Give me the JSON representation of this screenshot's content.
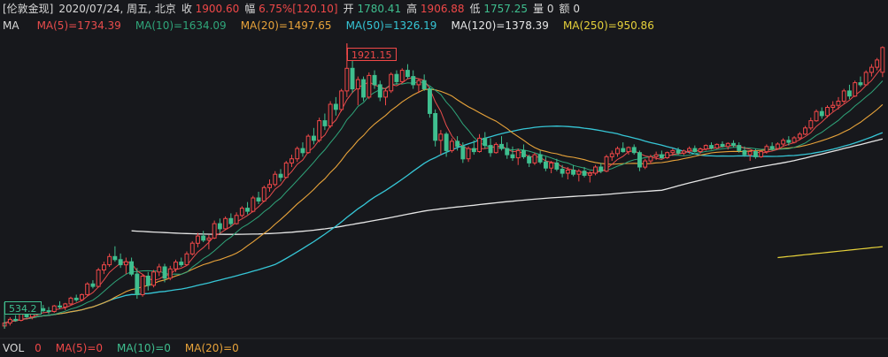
{
  "quote": {
    "symbol": "[伦敦金现]",
    "datetime": "2020/07/24, 周五, 北京",
    "close_label": "收",
    "close_value": "1900.60",
    "change_label": "幅",
    "change_value": "6.75%[120.10]",
    "open_label": "开",
    "open_value": "1780.41",
    "high_label": "高",
    "high_value": "1906.88",
    "low_label": "低",
    "low_value": "1757.25",
    "volume_label": "量",
    "volume_value": "0",
    "amount_label": "额",
    "amount_value": "0"
  },
  "ma_legend": {
    "label": "MA",
    "items": [
      {
        "text": "MA(5)=1734.39",
        "color": "#e84c4c"
      },
      {
        "text": "MA(10)=1634.09",
        "color": "#2fa57a"
      },
      {
        "text": "MA(20)=1497.65",
        "color": "#e8a33a"
      },
      {
        "text": "MA(50)=1326.19",
        "color": "#36c6d6"
      },
      {
        "text": "MA(120)=1378.39",
        "color": "#e6e6e6"
      },
      {
        "text": "MA(250)=950.86",
        "color": "#e6d13a"
      }
    ]
  },
  "vol_legend": {
    "label": "VOL",
    "items": [
      {
        "text": "0",
        "color": "#f04848"
      },
      {
        "text": "MA(5)=0",
        "color": "#f04848"
      },
      {
        "text": "MA(10)=0",
        "color": "#3fbf8f"
      },
      {
        "text": "MA(20)=0",
        "color": "#e8a33a"
      }
    ]
  },
  "chart_data": {
    "type": "candlestick",
    "title": "",
    "xlabel": "",
    "ylabel": "",
    "ylim": [
      500,
      1960
    ],
    "annotations": [
      {
        "text": "1921.15",
        "kind": "high"
      },
      {
        "text": "534.2",
        "kind": "low"
      }
    ],
    "colors": {
      "up": "#f04848",
      "down": "#3fbf8f"
    },
    "candles": [
      [
        548,
        570,
        534.2,
        562
      ],
      [
        562,
        590,
        550,
        580
      ],
      [
        580,
        600,
        568,
        575
      ],
      [
        575,
        612,
        570,
        605
      ],
      [
        605,
        618,
        585,
        592
      ],
      [
        592,
        615,
        580,
        610
      ],
      [
        610,
        640,
        600,
        632
      ],
      [
        632,
        650,
        615,
        622
      ],
      [
        622,
        640,
        605,
        618
      ],
      [
        618,
        650,
        612,
        645
      ],
      [
        645,
        668,
        630,
        640
      ],
      [
        640,
        660,
        625,
        655
      ],
      [
        655,
        690,
        650,
        683
      ],
      [
        683,
        700,
        665,
        675
      ],
      [
        675,
        705,
        668,
        700
      ],
      [
        700,
        760,
        695,
        752
      ],
      [
        752,
        770,
        730,
        740
      ],
      [
        740,
        830,
        735,
        820
      ],
      [
        820,
        860,
        800,
        845
      ],
      [
        845,
        900,
        835,
        885
      ],
      [
        885,
        935,
        860,
        870
      ],
      [
        870,
        900,
        830,
        845
      ],
      [
        845,
        880,
        800,
        860
      ],
      [
        860,
        880,
        790,
        800
      ],
      [
        800,
        830,
        680,
        700
      ],
      [
        700,
        800,
        690,
        790
      ],
      [
        790,
        810,
        720,
        745
      ],
      [
        745,
        820,
        735,
        810
      ],
      [
        810,
        850,
        790,
        835
      ],
      [
        835,
        850,
        760,
        780
      ],
      [
        780,
        840,
        770,
        825
      ],
      [
        825,
        870,
        810,
        858
      ],
      [
        858,
        880,
        835,
        845
      ],
      [
        845,
        910,
        840,
        898
      ],
      [
        898,
        960,
        890,
        950
      ],
      [
        950,
        1000,
        930,
        985
      ],
      [
        985,
        1010,
        955,
        965
      ],
      [
        965,
        990,
        920,
        975
      ],
      [
        975,
        1060,
        970,
        1045
      ],
      [
        1045,
        1070,
        1000,
        1020
      ],
      [
        1020,
        1080,
        1015,
        1070
      ],
      [
        1070,
        1095,
        1030,
        1045
      ],
      [
        1045,
        1100,
        1040,
        1085
      ],
      [
        1085,
        1130,
        1075,
        1120
      ],
      [
        1120,
        1150,
        1090,
        1105
      ],
      [
        1105,
        1180,
        1100,
        1170
      ],
      [
        1170,
        1200,
        1140,
        1155
      ],
      [
        1155,
        1230,
        1150,
        1220
      ],
      [
        1220,
        1260,
        1200,
        1235
      ],
      [
        1235,
        1300,
        1225,
        1285
      ],
      [
        1285,
        1310,
        1250,
        1270
      ],
      [
        1270,
        1350,
        1265,
        1340
      ],
      [
        1340,
        1380,
        1320,
        1360
      ],
      [
        1360,
        1420,
        1345,
        1410
      ],
      [
        1410,
        1440,
        1370,
        1390
      ],
      [
        1390,
        1480,
        1385,
        1470
      ],
      [
        1470,
        1510,
        1430,
        1450
      ],
      [
        1450,
        1560,
        1440,
        1545
      ],
      [
        1545,
        1580,
        1500,
        1520
      ],
      [
        1520,
        1640,
        1510,
        1625
      ],
      [
        1625,
        1660,
        1570,
        1600
      ],
      [
        1600,
        1700,
        1590,
        1690
      ],
      [
        1690,
        1921.15,
        1660,
        1800
      ],
      [
        1800,
        1860,
        1680,
        1700
      ],
      [
        1700,
        1760,
        1620,
        1745
      ],
      [
        1745,
        1760,
        1640,
        1660
      ],
      [
        1660,
        1780,
        1650,
        1765
      ],
      [
        1765,
        1790,
        1700,
        1720
      ],
      [
        1720,
        1740,
        1640,
        1660
      ],
      [
        1660,
        1700,
        1620,
        1690
      ],
      [
        1690,
        1780,
        1680,
        1770
      ],
      [
        1770,
        1790,
        1720,
        1735
      ],
      [
        1735,
        1800,
        1730,
        1790
      ],
      [
        1790,
        1820,
        1750,
        1760
      ],
      [
        1760,
        1790,
        1700,
        1720
      ],
      [
        1720,
        1750,
        1680,
        1740
      ],
      [
        1740,
        1770,
        1690,
        1700
      ],
      [
        1700,
        1710,
        1560,
        1580
      ],
      [
        1580,
        1600,
        1420,
        1450
      ],
      [
        1450,
        1500,
        1380,
        1480
      ],
      [
        1480,
        1490,
        1370,
        1400
      ],
      [
        1400,
        1460,
        1390,
        1445
      ],
      [
        1445,
        1470,
        1400,
        1420
      ],
      [
        1420,
        1440,
        1340,
        1360
      ],
      [
        1360,
        1420,
        1345,
        1410
      ],
      [
        1410,
        1450,
        1380,
        1395
      ],
      [
        1395,
        1480,
        1390,
        1460
      ],
      [
        1460,
        1490,
        1410,
        1425
      ],
      [
        1425,
        1460,
        1370,
        1390
      ],
      [
        1390,
        1440,
        1385,
        1430
      ],
      [
        1430,
        1470,
        1400,
        1410
      ],
      [
        1410,
        1440,
        1360,
        1380
      ],
      [
        1380,
        1420,
        1350,
        1365
      ],
      [
        1365,
        1410,
        1330,
        1400
      ],
      [
        1400,
        1430,
        1360,
        1370
      ],
      [
        1370,
        1380,
        1320,
        1340
      ],
      [
        1340,
        1390,
        1330,
        1380
      ],
      [
        1380,
        1400,
        1335,
        1345
      ],
      [
        1345,
        1370,
        1300,
        1315
      ],
      [
        1315,
        1350,
        1290,
        1340
      ],
      [
        1340,
        1360,
        1300,
        1310
      ],
      [
        1310,
        1330,
        1270,
        1290
      ],
      [
        1290,
        1320,
        1260,
        1305
      ],
      [
        1305,
        1330,
        1275,
        1285
      ],
      [
        1285,
        1310,
        1250,
        1300
      ],
      [
        1300,
        1320,
        1270,
        1280
      ],
      [
        1280,
        1300,
        1245,
        1290
      ],
      [
        1290,
        1330,
        1280,
        1320
      ],
      [
        1320,
        1340,
        1290,
        1300
      ],
      [
        1300,
        1380,
        1295,
        1370
      ],
      [
        1370,
        1400,
        1350,
        1385
      ],
      [
        1385,
        1420,
        1370,
        1410
      ],
      [
        1410,
        1440,
        1390,
        1395
      ],
      [
        1395,
        1420,
        1380,
        1415
      ],
      [
        1415,
        1430,
        1380,
        1390
      ],
      [
        1390,
        1400,
        1300,
        1320
      ],
      [
        1320,
        1360,
        1310,
        1350
      ],
      [
        1350,
        1380,
        1335,
        1370
      ],
      [
        1370,
        1395,
        1355,
        1380
      ],
      [
        1380,
        1400,
        1360,
        1365
      ],
      [
        1365,
        1395,
        1360,
        1390
      ],
      [
        1390,
        1410,
        1375,
        1400
      ],
      [
        1400,
        1415,
        1380,
        1388
      ],
      [
        1388,
        1405,
        1378,
        1398
      ],
      [
        1398,
        1420,
        1385,
        1410
      ],
      [
        1410,
        1425,
        1390,
        1395
      ],
      [
        1395,
        1415,
        1385,
        1408
      ],
      [
        1408,
        1430,
        1400,
        1425
      ],
      [
        1425,
        1440,
        1405,
        1412
      ],
      [
        1412,
        1435,
        1408,
        1430
      ],
      [
        1430,
        1445,
        1415,
        1420
      ],
      [
        1420,
        1440,
        1405,
        1435
      ],
      [
        1435,
        1450,
        1415,
        1425
      ],
      [
        1425,
        1440,
        1390,
        1400
      ],
      [
        1400,
        1420,
        1370,
        1380
      ],
      [
        1380,
        1400,
        1350,
        1395
      ],
      [
        1395,
        1410,
        1360,
        1370
      ],
      [
        1370,
        1400,
        1365,
        1395
      ],
      [
        1395,
        1430,
        1385,
        1420
      ],
      [
        1420,
        1440,
        1400,
        1410
      ],
      [
        1410,
        1440,
        1405,
        1432
      ],
      [
        1432,
        1460,
        1420,
        1450
      ],
      [
        1450,
        1470,
        1425,
        1440
      ],
      [
        1440,
        1470,
        1435,
        1462
      ],
      [
        1462,
        1490,
        1450,
        1480
      ],
      [
        1480,
        1520,
        1475,
        1510
      ],
      [
        1510,
        1560,
        1500,
        1545
      ],
      [
        1545,
        1600,
        1540,
        1590
      ],
      [
        1590,
        1610,
        1555,
        1570
      ],
      [
        1570,
        1620,
        1560,
        1610
      ],
      [
        1610,
        1640,
        1590,
        1620
      ],
      [
        1620,
        1660,
        1600,
        1640
      ],
      [
        1640,
        1700,
        1630,
        1690
      ],
      [
        1690,
        1720,
        1650,
        1665
      ],
      [
        1665,
        1740,
        1660,
        1730
      ],
      [
        1730,
        1760,
        1710,
        1720
      ],
      [
        1720,
        1790,
        1715,
        1780
      ],
      [
        1780,
        1820,
        1760,
        1805
      ],
      [
        1805,
        1850,
        1790,
        1840
      ],
      [
        1780.41,
        1906.88,
        1757.25,
        1900.6
      ]
    ],
    "ma_anchor": {
      "ma120": {
        "start_index": 23,
        "start_value": 1010
      },
      "ma250": {
        "start_index": 140,
        "start_value": 880
      }
    }
  }
}
